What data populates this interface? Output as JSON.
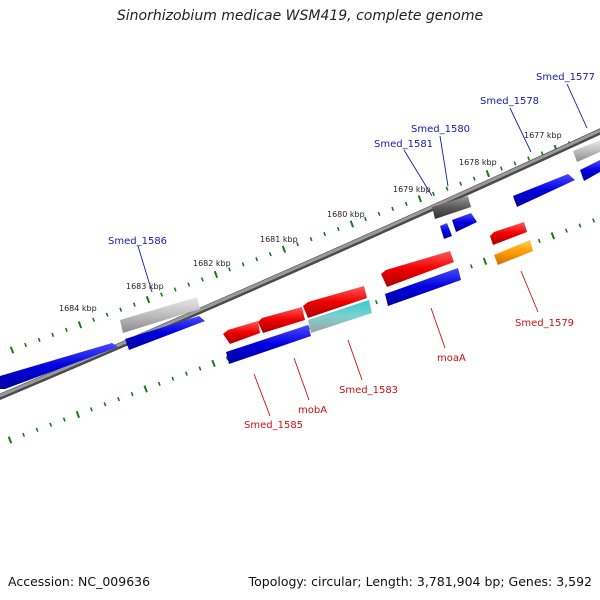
{
  "title": "Sinorhizobium medicae WSM419, complete genome",
  "accession": "Accession: NC_009636",
  "summary": "Topology: circular; Length: 3,781,904 bp; Genes: 3,592",
  "colors": {
    "forward_gene": "#0000cc",
    "reverse_gene": "#dd0000",
    "label_forward": "#1a1aaa",
    "label_reverse": "#cc1111",
    "tick": "#1a7a1a",
    "backbone": "#808080"
  },
  "kbp_ticks": [
    "1684 kbp",
    "1683 kbp",
    "1682 kbp",
    "1681 kbp",
    "1680 kbp",
    "1679 kbp",
    "1678 kbp",
    "1677 kbp"
  ],
  "gene_labels": [
    {
      "text": "Smed_1586",
      "strand": "forward"
    },
    {
      "text": "Smed_1581",
      "strand": "forward"
    },
    {
      "text": "Smed_1580",
      "strand": "forward"
    },
    {
      "text": "Smed_1578",
      "strand": "forward"
    },
    {
      "text": "Smed_1577",
      "strand": "forward"
    },
    {
      "text": "Smed_1585",
      "strand": "reverse"
    },
    {
      "text": "mobA",
      "strand": "reverse"
    },
    {
      "text": "Smed_1583",
      "strand": "reverse"
    },
    {
      "text": "moaA",
      "strand": "reverse"
    },
    {
      "text": "Smed_1579",
      "strand": "reverse"
    }
  ]
}
